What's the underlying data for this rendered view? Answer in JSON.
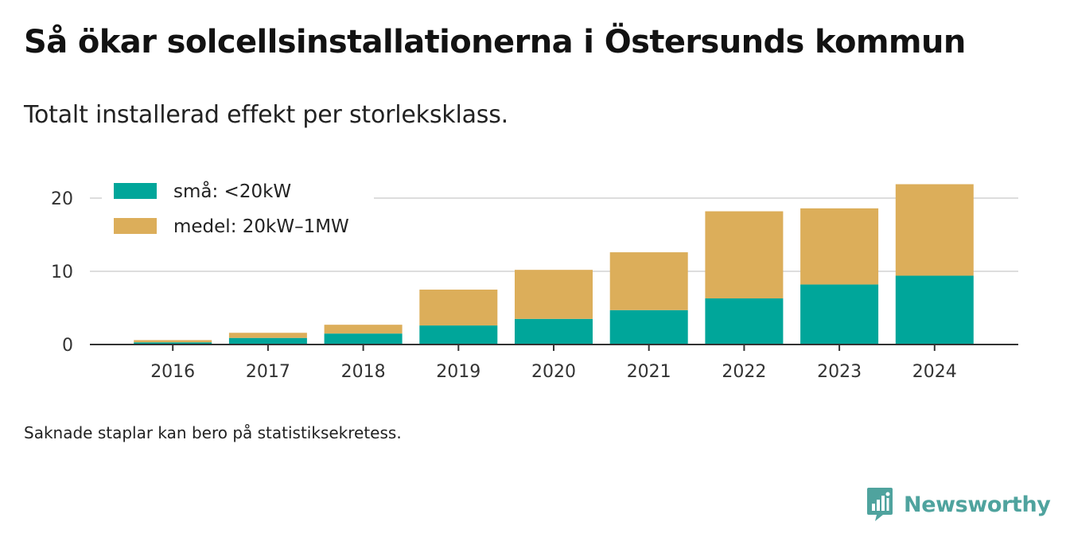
{
  "title": "Så ökar solcellsinstallationerna i Östersunds kommun",
  "subtitle": "Totalt installerad effekt per storleksklass.",
  "note": "Saknade staplar kan bero på statistiksekretess.",
  "brand": {
    "name": "Newsworthy",
    "icon": "newsworthy-logo-icon"
  },
  "colors": {
    "small": "#00a69a",
    "medium": "#dcae5a",
    "grid": "#dddddd",
    "axis": "#333333",
    "brand": "#4fa39e"
  },
  "chart_data": {
    "type": "bar",
    "stacked": true,
    "categories": [
      "2016",
      "2017",
      "2018",
      "2019",
      "2020",
      "2021",
      "2022",
      "2023",
      "2024"
    ],
    "series": [
      {
        "name": "små: <20kW",
        "color": "#00a69a",
        "values": [
          0.3,
          0.9,
          1.5,
          2.6,
          3.5,
          4.7,
          6.3,
          8.2,
          9.4
        ]
      },
      {
        "name": "medel: 20kW–1MW",
        "color": "#dcae5a",
        "values": [
          0.3,
          0.7,
          1.2,
          4.9,
          6.7,
          7.9,
          11.9,
          10.4,
          12.5
        ]
      }
    ],
    "ylim": [
      0,
      23
    ],
    "yticks": [
      0,
      10,
      20
    ],
    "grid": true,
    "legend": "top-left",
    "xlabel": "",
    "ylabel": ""
  }
}
